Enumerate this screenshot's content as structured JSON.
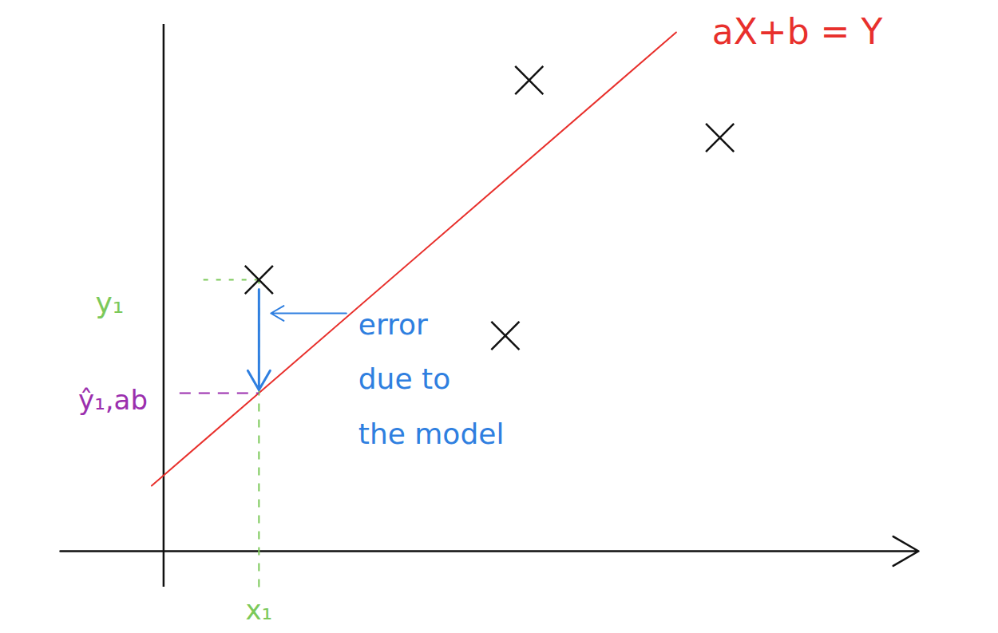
{
  "chart_data": {
    "type": "scatter",
    "tick_labels": false,
    "grid": false,
    "xlim": [
      -1.3,
      9.5
    ],
    "ylim": [
      -0.45,
      6.6
    ],
    "xticks": [],
    "yticks": [],
    "x": [
      1.2,
      4.6,
      7.0,
      4.3
    ],
    "values": [
      3.4,
      5.9,
      5.18,
      2.7
    ],
    "marker": "x",
    "color": "#111111",
    "model": {
      "label": "aX+b = Y",
      "color": "#e8302c",
      "x": [
        -0.15,
        6.45
      ],
      "values": [
        0.82,
        6.5
      ]
    },
    "highlight": {
      "index": 0,
      "x_label": "x₁",
      "y_label": "y₁",
      "label_color": "#7cc95a",
      "fitted": 1.98,
      "fitted_label": "ŷ₁,ab",
      "fitted_color": "#9b2fae"
    },
    "annotations": [
      {
        "text": "error due to the model",
        "color": "#2f7fe0"
      }
    ]
  }
}
